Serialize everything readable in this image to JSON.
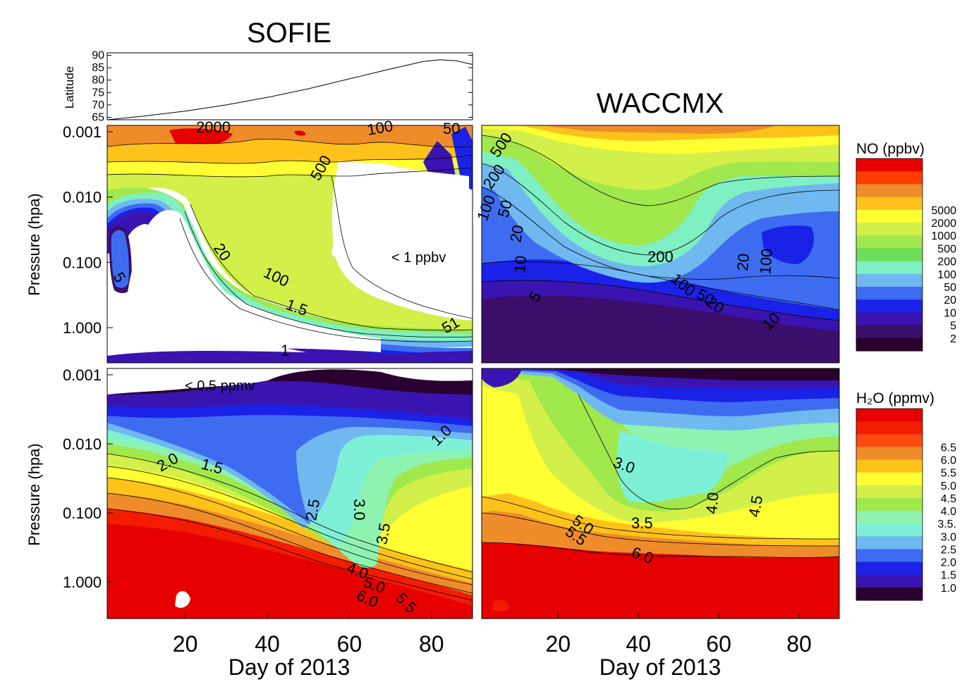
{
  "titles": {
    "sofie": "SOFIE",
    "waccmx": "WACCMX"
  },
  "latitude_panel": {
    "ylabel": "Latitude",
    "yticks": [
      "90",
      "85",
      "80",
      "75",
      "70",
      "65"
    ],
    "ylim": [
      64,
      91
    ],
    "series": {
      "x": [
        1,
        10,
        20,
        30,
        40,
        50,
        60,
        70,
        78,
        82,
        86,
        90
      ],
      "y": [
        64,
        65.5,
        67.5,
        70,
        73,
        76.5,
        80.5,
        84.5,
        87.5,
        88.2,
        87.8,
        86.3
      ]
    }
  },
  "axes": {
    "ylabel": "Pressure (hpa)",
    "yticks": [
      "0.001",
      "0.010",
      "0.100",
      "1.000"
    ],
    "xticks": [
      "20",
      "40",
      "60",
      "80"
    ],
    "xlabel": "Day of 2013",
    "xlim": [
      1,
      90
    ],
    "ylim": [
      0.001,
      2.5
    ],
    "yscale": "log"
  },
  "annotations": {
    "no_low": "< 1 ppbv",
    "h2o_low": "< 0.5 ppmv"
  },
  "colorbars": {
    "no": {
      "title": "NO (ppbv)",
      "labels": [
        "5000",
        "2000",
        "1000",
        "500",
        "200",
        "100",
        "50",
        "20",
        "10",
        "5",
        "2"
      ],
      "colors": [
        "#e60000",
        "#ff3d00",
        "#ef8c2a",
        "#ffc21a",
        "#ffff33",
        "#d3f04a",
        "#a0e84c",
        "#6ede5a",
        "#7ff0c4",
        "#6fb8f0",
        "#3d6cf0",
        "#1a22e8",
        "#3a14b0",
        "#3a0e6a",
        "#2a0030"
      ]
    },
    "h2o": {
      "title": "H₂O (ppmv)",
      "labels": [
        "6.5",
        "6.0",
        "5.5",
        "5.0",
        "4.5",
        "4.0",
        "3.5.",
        "3.0",
        "2.5",
        "2.0",
        "1.5",
        "1.0"
      ],
      "colors": [
        "#e60000",
        "#f41c00",
        "#ff4a10",
        "#ef8c2a",
        "#ffc21a",
        "#ffff33",
        "#d3f04a",
        "#a0e84c",
        "#8ef2b0",
        "#7ff0d8",
        "#6fb8f0",
        "#3d6cf0",
        "#1a22e8",
        "#3a14b0",
        "#2a0030"
      ]
    }
  },
  "chart_data": [
    {
      "type": "line",
      "title": "SOFIE",
      "ylabel": "Latitude",
      "x": [
        1,
        10,
        20,
        30,
        40,
        50,
        60,
        70,
        78,
        82,
        86,
        90
      ],
      "series": [
        {
          "values": [
            64,
            65.5,
            67.5,
            70,
            73,
            76.5,
            80.5,
            84.5,
            87.5,
            88.2,
            87.8,
            86.3
          ]
        }
      ],
      "xlim": [
        1,
        90
      ],
      "ylim": [
        64,
        91
      ]
    },
    {
      "type": "heatmap",
      "title": "SOFIE",
      "quantity": "NO (ppbv)",
      "xlabel": "Day of 2013",
      "ylabel": "Pressure (hpa)",
      "xlim": [
        1,
        90
      ],
      "ylim": [
        0.001,
        2.5
      ],
      "contour_labels": [
        "2000",
        "100",
        "500",
        "20",
        "100",
        "1.5",
        "1",
        "5",
        "1",
        "50"
      ],
      "annotation": "< 1 ppbv"
    },
    {
      "type": "heatmap",
      "title": "WACCMX",
      "quantity": "NO (ppbv)",
      "xlabel": "Day of 2013",
      "ylabel": "Pressure (hpa)",
      "xlim": [
        1,
        90
      ],
      "ylim": [
        0.001,
        2.5
      ],
      "contour_labels": [
        "500",
        "200",
        "100",
        "50",
        "20",
        "10",
        "5",
        "200",
        "100",
        "50",
        "20",
        "10",
        "20",
        "100"
      ]
    },
    {
      "type": "heatmap",
      "title": "SOFIE",
      "quantity": "H2O (ppmv)",
      "xlabel": "Day of 2013",
      "ylabel": "Pressure (hpa)",
      "xlim": [
        1,
        90
      ],
      "ylim": [
        0.001,
        2.5
      ],
      "contour_labels": [
        "2.0",
        "1.5",
        "2.5",
        "3.0",
        "3.5",
        "4.0",
        "5.0",
        "6.0",
        "5.5",
        "1.0"
      ],
      "annotation": "< 0.5 ppmv"
    },
    {
      "type": "heatmap",
      "title": "WACCMX",
      "quantity": "H2O (ppmv)",
      "xlabel": "Day of 2013",
      "ylabel": "Pressure (hpa)",
      "xlim": [
        1,
        90
      ],
      "ylim": [
        0.001,
        2.5
      ],
      "contour_labels": [
        "3.0",
        "3.5",
        "4.0",
        "4.5",
        "5.0",
        "5.5",
        "6.0"
      ]
    }
  ]
}
